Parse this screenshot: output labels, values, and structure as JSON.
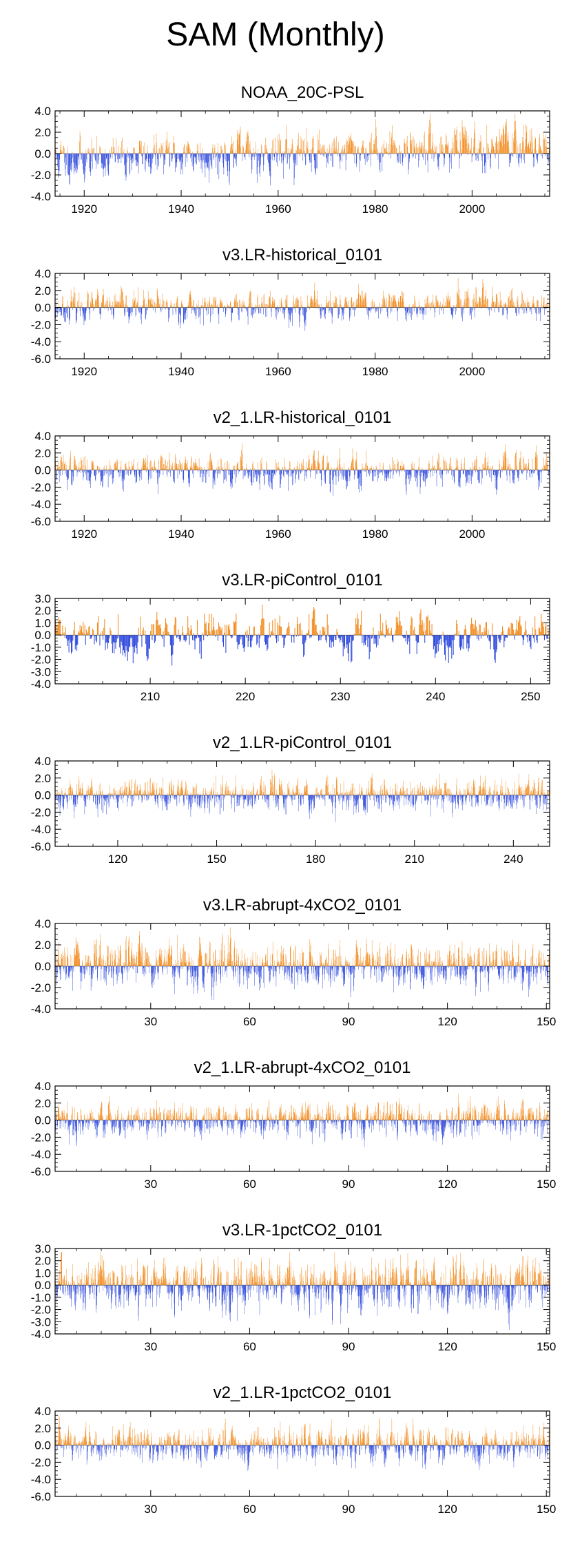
{
  "title": "SAM (Monthly)",
  "colors": {
    "positive": "#f28a1c",
    "negative": "#2b46dc",
    "frame": "#000000"
  },
  "chart_data": [
    {
      "type": "bar",
      "title": "NOAA_20C-PSL",
      "ylim": [
        -4.0,
        4.0
      ],
      "yticks": [
        -4.0,
        -2.0,
        0.0,
        2.0,
        4.0
      ],
      "ylabels": [
        "-4.0",
        "-2.0",
        "0.0",
        "2.0",
        "4.0"
      ],
      "xlim": [
        1914,
        2016
      ],
      "xticks": [
        1920,
        1940,
        1960,
        1980,
        2000
      ],
      "xlabels": [
        "1920",
        "1940",
        "1960",
        "1980",
        "2000"
      ],
      "n_months": 1224,
      "seed": 11,
      "trend_start": -0.6,
      "trend_end": 0.9,
      "amplitude": 1.0
    },
    {
      "type": "bar",
      "title": "v3.LR-historical_0101",
      "ylim": [
        -6.0,
        4.0
      ],
      "yticks": [
        -6.0,
        -4.0,
        -2.0,
        0.0,
        2.0,
        4.0
      ],
      "ylabels": [
        "-6.0",
        "-4.0",
        "-2.0",
        "0.0",
        "2.0",
        "4.0"
      ],
      "xlim": [
        1914,
        2016
      ],
      "xticks": [
        1920,
        1940,
        1960,
        1980,
        2000
      ],
      "xlabels": [
        "1920",
        "1940",
        "1960",
        "1980",
        "2000"
      ],
      "n_months": 1224,
      "seed": 23,
      "trend_start": 0.0,
      "trend_end": 0.15,
      "amplitude": 0.9
    },
    {
      "type": "bar",
      "title": "v2_1.LR-historical_0101",
      "ylim": [
        -6.0,
        4.0
      ],
      "yticks": [
        -6.0,
        -4.0,
        -2.0,
        0.0,
        2.0,
        4.0
      ],
      "ylabels": [
        "-6.0",
        "-4.0",
        "-2.0",
        "0.0",
        "2.0",
        "4.0"
      ],
      "xlim": [
        1914,
        2016
      ],
      "xticks": [
        1920,
        1940,
        1960,
        1980,
        2000
      ],
      "xlabels": [
        "1920",
        "1940",
        "1960",
        "1980",
        "2000"
      ],
      "n_months": 1224,
      "seed": 37,
      "trend_start": 0.0,
      "trend_end": 0.0,
      "amplitude": 0.95
    },
    {
      "type": "bar",
      "title": "v3.LR-piControl_0101",
      "ylim": [
        -4.0,
        3.0
      ],
      "yticks": [
        -4.0,
        -3.0,
        -2.0,
        -1.0,
        0.0,
        1.0,
        2.0,
        3.0
      ],
      "ylabels": [
        "-4.0",
        "-3.0",
        "-2.0",
        "-1.0",
        "0.0",
        "1.0",
        "2.0",
        "3.0"
      ],
      "xlim": [
        200,
        252
      ],
      "xticks": [
        210,
        220,
        230,
        240,
        250
      ],
      "xlabels": [
        "210",
        "220",
        "230",
        "240",
        "250"
      ],
      "n_months": 624,
      "seed": 41,
      "trend_start": 0.0,
      "trend_end": 0.0,
      "amplitude": 0.9
    },
    {
      "type": "bar",
      "title": "v2_1.LR-piControl_0101",
      "ylim": [
        -6.0,
        4.0
      ],
      "yticks": [
        -6.0,
        -4.0,
        -2.0,
        0.0,
        2.0,
        4.0
      ],
      "ylabels": [
        "-6.0",
        "-4.0",
        "-2.0",
        "0.0",
        "2.0",
        "4.0"
      ],
      "xlim": [
        101,
        251
      ],
      "xticks": [
        120,
        150,
        180,
        210,
        240
      ],
      "xlabels": [
        "120",
        "150",
        "180",
        "210",
        "240"
      ],
      "n_months": 1800,
      "seed": 53,
      "trend_start": 0.0,
      "trend_end": 0.0,
      "amplitude": 0.95
    },
    {
      "type": "bar",
      "title": "v3.LR-abrupt-4xCO2_0101",
      "ylim": [
        -4.0,
        4.0
      ],
      "yticks": [
        -4.0,
        -2.0,
        0.0,
        2.0,
        4.0
      ],
      "ylabels": [
        "-4.0",
        "-2.0",
        "0.0",
        "2.0",
        "4.0"
      ],
      "xlim": [
        1,
        151
      ],
      "xticks": [
        30,
        60,
        90,
        120,
        150
      ],
      "xlabels": [
        "30",
        "60",
        "90",
        "120",
        "150"
      ],
      "n_months": 1800,
      "seed": 67,
      "trend_start": 0.0,
      "trend_end": 0.0,
      "amplitude": 1.0
    },
    {
      "type": "bar",
      "title": "v2_1.LR-abrupt-4xCO2_0101",
      "ylim": [
        -6.0,
        4.0
      ],
      "yticks": [
        -6.0,
        -4.0,
        -2.0,
        0.0,
        2.0,
        4.0
      ],
      "ylabels": [
        "-6.0",
        "-4.0",
        "-2.0",
        "0.0",
        "2.0",
        "4.0"
      ],
      "xlim": [
        1,
        151
      ],
      "xticks": [
        30,
        60,
        90,
        120,
        150
      ],
      "xlabels": [
        "30",
        "60",
        "90",
        "120",
        "150"
      ],
      "n_months": 1800,
      "seed": 79,
      "trend_start": 0.0,
      "trend_end": 0.0,
      "amplitude": 0.95
    },
    {
      "type": "bar",
      "title": "v3.LR-1pctCO2_0101",
      "ylim": [
        -4.0,
        3.0
      ],
      "yticks": [
        -4.0,
        -3.0,
        -2.0,
        -1.0,
        0.0,
        1.0,
        2.0,
        3.0
      ],
      "ylabels": [
        "-4.0",
        "-3.0",
        "-2.0",
        "-1.0",
        "0.0",
        "1.0",
        "2.0",
        "3.0"
      ],
      "xlim": [
        1,
        151
      ],
      "xticks": [
        30,
        60,
        90,
        120,
        150
      ],
      "xlabels": [
        "30",
        "60",
        "90",
        "120",
        "150"
      ],
      "n_months": 1800,
      "seed": 83,
      "trend_start": 0.0,
      "trend_end": 0.0,
      "amplitude": 1.0
    },
    {
      "type": "bar",
      "title": "v2_1.LR-1pctCO2_0101",
      "ylim": [
        -6.0,
        4.0
      ],
      "yticks": [
        -6.0,
        -4.0,
        -2.0,
        0.0,
        2.0,
        4.0
      ],
      "ylabels": [
        "-6.0",
        "-4.0",
        "-2.0",
        "0.0",
        "2.0",
        "4.0"
      ],
      "xlim": [
        1,
        151
      ],
      "xticks": [
        30,
        60,
        90,
        120,
        150
      ],
      "xlabels": [
        "30",
        "60",
        "90",
        "120",
        "150"
      ],
      "n_months": 1800,
      "seed": 97,
      "trend_start": 0.0,
      "trend_end": 0.0,
      "amplitude": 1.0
    }
  ]
}
